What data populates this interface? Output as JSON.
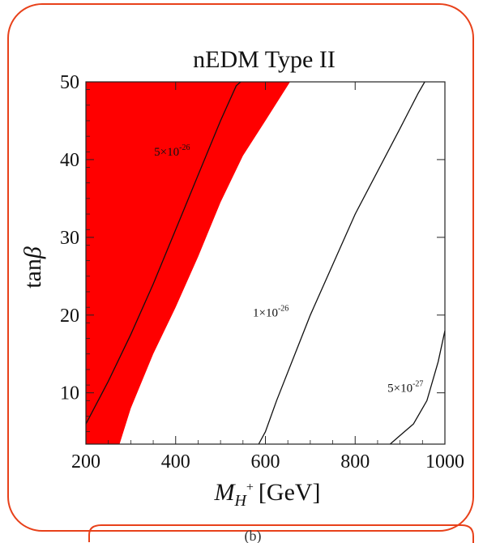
{
  "chart_data": {
    "type": "area",
    "title": "nEDM Type II",
    "xlabel_main": "M",
    "xlabel_sub": "H",
    "xlabel_sup": "+",
    "xlabel_unit": "[GeV]",
    "ylabel_main": "tan",
    "ylabel_greek": "β",
    "xlim": [
      200,
      1000
    ],
    "ylim": [
      3.4,
      50
    ],
    "xticks": [
      200,
      400,
      600,
      800,
      1000
    ],
    "yticks": [
      10,
      20,
      30,
      40,
      50
    ],
    "excluded_region": {
      "color": "#ff0000",
      "left_x": 200,
      "boundary": [
        {
          "x": 275,
          "y": 3.4
        },
        {
          "x": 300,
          "y": 8
        },
        {
          "x": 350,
          "y": 15
        },
        {
          "x": 400,
          "y": 21
        },
        {
          "x": 450,
          "y": 27.5
        },
        {
          "x": 500,
          "y": 34.5
        },
        {
          "x": 550,
          "y": 40.5
        },
        {
          "x": 600,
          "y": 45
        },
        {
          "x": 655,
          "y": 50
        }
      ]
    },
    "contours": [
      {
        "label": "5×10",
        "exp": "-26",
        "label_at": {
          "x": 352,
          "y": 40.5
        },
        "points": [
          {
            "x": 200,
            "y": 6
          },
          {
            "x": 250,
            "y": 11.5
          },
          {
            "x": 300,
            "y": 17.5
          },
          {
            "x": 350,
            "y": 24
          },
          {
            "x": 400,
            "y": 31
          },
          {
            "x": 450,
            "y": 38
          },
          {
            "x": 500,
            "y": 45
          },
          {
            "x": 535,
            "y": 49.5
          },
          {
            "x": 545,
            "y": 50
          }
        ]
      },
      {
        "label": "1×10",
        "exp": "-26",
        "label_at": {
          "x": 572,
          "y": 19.8
        },
        "points": [
          {
            "x": 585,
            "y": 3.4
          },
          {
            "x": 600,
            "y": 5
          },
          {
            "x": 625,
            "y": 9
          },
          {
            "x": 700,
            "y": 20
          },
          {
            "x": 800,
            "y": 33
          },
          {
            "x": 900,
            "y": 44
          },
          {
            "x": 940,
            "y": 48.5
          },
          {
            "x": 955,
            "y": 50
          }
        ]
      },
      {
        "label": "5×10",
        "exp": "-27",
        "label_at": {
          "x": 872,
          "y": 10.1
        },
        "points": [
          {
            "x": 878,
            "y": 3.4
          },
          {
            "x": 900,
            "y": 4.5
          },
          {
            "x": 930,
            "y": 6
          },
          {
            "x": 960,
            "y": 9
          },
          {
            "x": 985,
            "y": 14
          },
          {
            "x": 1000,
            "y": 18
          }
        ]
      }
    ],
    "grid": false
  },
  "frame": {
    "border_color": "#e8411a",
    "caption": "(b)"
  }
}
